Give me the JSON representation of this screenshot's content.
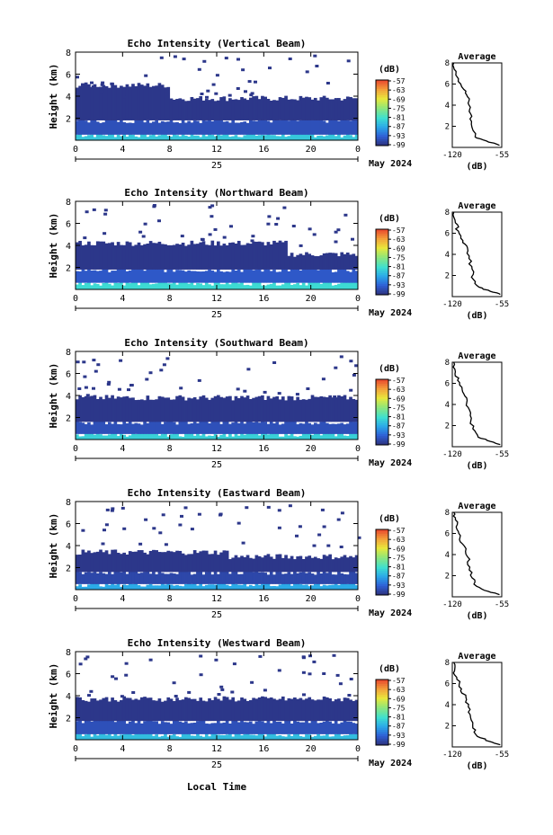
{
  "figure": {
    "date_label": "May 2024",
    "day_label": "25",
    "x_axis_label": "Local Time",
    "colorbar_unit": "(dB)",
    "colorbar_ticks": [
      "-57",
      "-63",
      "-69",
      "-75",
      "-81",
      "-87",
      "-93",
      "-99"
    ],
    "profile_title": "Average",
    "profile_xlabel": "(dB)"
  },
  "chart_data": [
    {
      "type": "heatmap",
      "title": "Echo Intensity (Vertical Beam)",
      "ylabel": "Height (km)",
      "xlabel": "",
      "x_ticks": [
        "0",
        "4",
        "8",
        "12",
        "16",
        "20",
        "0"
      ],
      "y_ticks": [
        "8",
        "6",
        "4",
        "2"
      ],
      "xlim": [
        0,
        24
      ],
      "ylim": [
        0,
        8
      ],
      "zlim": [
        -99,
        -57
      ],
      "layers": [
        {
          "x_start": 0,
          "x_end": 24,
          "base_km": 0,
          "top_km": 0.5,
          "db": -84
        },
        {
          "x_start": 0,
          "x_end": 24,
          "base_km": 0.5,
          "top_km": 1.8,
          "db": -95
        },
        {
          "x_start": 0,
          "x_end": 8,
          "base_km": 1.8,
          "top_km": 5.0,
          "db": -98
        },
        {
          "x_start": 8,
          "x_end": 24,
          "base_km": 1.8,
          "top_km": 3.8,
          "db": -98
        }
      ],
      "profile": {
        "xlim": [
          -120,
          -55
        ],
        "x_ticks": [
          "-120",
          "-55"
        ],
        "y_ticks": [
          "8",
          "6",
          "4",
          "2"
        ],
        "ylim": [
          0,
          8
        ],
        "points": [
          [
            -118,
            8
          ],
          [
            -115,
            7.2
          ],
          [
            -112,
            6.5
          ],
          [
            -105,
            5.5
          ],
          [
            -100,
            4.8
          ],
          [
            -98,
            4.0
          ],
          [
            -96,
            3.2
          ],
          [
            -95,
            2.2
          ],
          [
            -90,
            1.0
          ],
          [
            -75,
            0.6
          ],
          [
            -58,
            0.2
          ]
        ]
      }
    },
    {
      "type": "heatmap",
      "title": "Echo Intensity (Northward Beam)",
      "ylabel": "Height (km)",
      "xlabel": "",
      "x_ticks": [
        "0",
        "4",
        "8",
        "12",
        "16",
        "20",
        "0"
      ],
      "y_ticks": [
        "8",
        "6",
        "4",
        "2"
      ],
      "xlim": [
        0,
        24
      ],
      "ylim": [
        0,
        8
      ],
      "zlim": [
        -99,
        -57
      ],
      "layers": [
        {
          "x_start": 0,
          "x_end": 24,
          "base_km": 0,
          "top_km": 0.6,
          "db": -82
        },
        {
          "x_start": 0,
          "x_end": 24,
          "base_km": 0.6,
          "top_km": 1.8,
          "db": -94
        },
        {
          "x_start": 0,
          "x_end": 18,
          "base_km": 1.8,
          "top_km": 4.2,
          "db": -98
        },
        {
          "x_start": 18,
          "x_end": 24,
          "base_km": 1.8,
          "top_km": 3.2,
          "db": -98
        }
      ],
      "profile": {
        "xlim": [
          -120,
          -55
        ],
        "x_ticks": [
          "-120",
          "-55"
        ],
        "y_ticks": [
          "8",
          "6",
          "4",
          "2"
        ],
        "ylim": [
          0,
          8
        ],
        "points": [
          [
            -118,
            8
          ],
          [
            -116,
            7.0
          ],
          [
            -112,
            6.2
          ],
          [
            -106,
            5.3
          ],
          [
            -100,
            4.6
          ],
          [
            -98,
            3.6
          ],
          [
            -94,
            2.6
          ],
          [
            -92,
            1.6
          ],
          [
            -85,
            0.9
          ],
          [
            -70,
            0.5
          ],
          [
            -57,
            0.2
          ]
        ]
      }
    },
    {
      "type": "heatmap",
      "title": "Echo Intensity (Southward Beam)",
      "ylabel": "Height (km)",
      "xlabel": "",
      "x_ticks": [
        "0",
        "4",
        "8",
        "12",
        "16",
        "20",
        "0"
      ],
      "y_ticks": [
        "8",
        "6",
        "4",
        "2"
      ],
      "xlim": [
        0,
        24
      ],
      "ylim": [
        0,
        8
      ],
      "zlim": [
        -99,
        -57
      ],
      "layers": [
        {
          "x_start": 0,
          "x_end": 24,
          "base_km": 0,
          "top_km": 0.5,
          "db": -83
        },
        {
          "x_start": 0,
          "x_end": 24,
          "base_km": 0.5,
          "top_km": 1.6,
          "db": -95
        },
        {
          "x_start": 0,
          "x_end": 24,
          "base_km": 1.6,
          "top_km": 3.8,
          "db": -98
        }
      ],
      "profile": {
        "xlim": [
          -120,
          -55
        ],
        "x_ticks": [
          "-120",
          "-55"
        ],
        "y_ticks": [
          "8",
          "6",
          "4",
          "2"
        ],
        "ylim": [
          0,
          8
        ],
        "points": [
          [
            -118,
            8
          ],
          [
            -116,
            7.1
          ],
          [
            -113,
            6.3
          ],
          [
            -107,
            5.4
          ],
          [
            -101,
            4.6
          ],
          [
            -99,
            3.7
          ],
          [
            -95,
            2.7
          ],
          [
            -93,
            1.7
          ],
          [
            -86,
            0.9
          ],
          [
            -70,
            0.5
          ],
          [
            -57,
            0.2
          ]
        ]
      }
    },
    {
      "type": "heatmap",
      "title": "Echo Intensity (Eastward Beam)",
      "ylabel": "Height (km)",
      "xlabel": "",
      "x_ticks": [
        "0",
        "4",
        "8",
        "12",
        "16",
        "20",
        "0"
      ],
      "y_ticks": [
        "8",
        "6",
        "4",
        "2"
      ],
      "xlim": [
        0,
        24
      ],
      "ylim": [
        0,
        8
      ],
      "zlim": [
        -99,
        -57
      ],
      "layers": [
        {
          "x_start": 0,
          "x_end": 24,
          "base_km": 0,
          "top_km": 0.5,
          "db": -87
        },
        {
          "x_start": 0,
          "x_end": 24,
          "base_km": 0.5,
          "top_km": 1.6,
          "db": -96
        },
        {
          "x_start": 0,
          "x_end": 13,
          "base_km": 1.6,
          "top_km": 3.4,
          "db": -98
        },
        {
          "x_start": 13,
          "x_end": 24,
          "base_km": 1.6,
          "top_km": 3.0,
          "db": -98
        }
      ],
      "profile": {
        "xlim": [
          -120,
          -55
        ],
        "x_ticks": [
          "-120",
          "-55"
        ],
        "y_ticks": [
          "8",
          "6",
          "4",
          "2"
        ],
        "ylim": [
          0,
          8
        ],
        "points": [
          [
            -118,
            8
          ],
          [
            -116,
            7.3
          ],
          [
            -114,
            6.4
          ],
          [
            -110,
            5.6
          ],
          [
            -104,
            4.8
          ],
          [
            -100,
            3.8
          ],
          [
            -97,
            2.8
          ],
          [
            -94,
            1.8
          ],
          [
            -88,
            1.0
          ],
          [
            -72,
            0.5
          ],
          [
            -58,
            0.2
          ]
        ]
      }
    },
    {
      "type": "heatmap",
      "title": "Echo Intensity (Westward Beam)",
      "ylabel": "Height (km)",
      "xlabel": "",
      "x_ticks": [
        "0",
        "4",
        "8",
        "12",
        "16",
        "20",
        "0"
      ],
      "y_ticks": [
        "8",
        "6",
        "4",
        "2"
      ],
      "xlim": [
        0,
        24
      ],
      "ylim": [
        0,
        8
      ],
      "zlim": [
        -99,
        -57
      ],
      "layers": [
        {
          "x_start": 0,
          "x_end": 24,
          "base_km": 0,
          "top_km": 0.5,
          "db": -85
        },
        {
          "x_start": 0,
          "x_end": 24,
          "base_km": 0.5,
          "top_km": 1.7,
          "db": -95
        },
        {
          "x_start": 0,
          "x_end": 24,
          "base_km": 1.7,
          "top_km": 3.7,
          "db": -98
        }
      ],
      "profile": {
        "xlim": [
          -120,
          -55
        ],
        "x_ticks": [
          "-120",
          "-55"
        ],
        "y_ticks": [
          "8",
          "6",
          "4",
          "2"
        ],
        "ylim": [
          0,
          8
        ],
        "points": [
          [
            -118,
            8
          ],
          [
            -117,
            7.2
          ],
          [
            -114,
            6.4
          ],
          [
            -108,
            5.5
          ],
          [
            -102,
            4.7
          ],
          [
            -99,
            3.8
          ],
          [
            -96,
            2.8
          ],
          [
            -93,
            1.8
          ],
          [
            -87,
            1.0
          ],
          [
            -70,
            0.5
          ],
          [
            -57,
            0.2
          ]
        ]
      }
    }
  ]
}
